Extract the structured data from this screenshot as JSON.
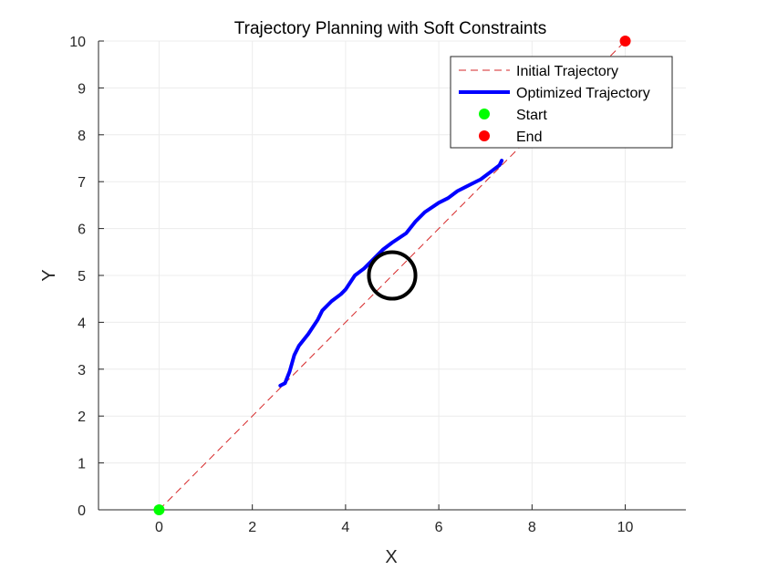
{
  "chart_data": {
    "type": "line",
    "title": "Trajectory Planning with Soft Constraints",
    "xlabel": "X",
    "ylabel": "Y",
    "xlim": [
      -1.3,
      11.3
    ],
    "ylim": [
      0,
      10
    ],
    "xticks": [
      0,
      2,
      4,
      6,
      8,
      10
    ],
    "yticks": [
      0,
      1,
      2,
      3,
      4,
      5,
      6,
      7,
      8,
      9,
      10
    ],
    "grid": true,
    "legend_position": "top-right",
    "legend": [
      "Initial Trajectory",
      "Optimized Trajectory",
      "Start",
      "End"
    ],
    "series": [
      {
        "name": "Initial Trajectory",
        "style": "dashed",
        "color": "#d62728",
        "x": [
          0,
          10
        ],
        "y": [
          0,
          10
        ]
      },
      {
        "name": "Optimized Trajectory",
        "style": "solid",
        "color": "#0000ff",
        "x": [
          2.6,
          2.7,
          2.8,
          2.9,
          3.0,
          3.2,
          3.4,
          3.5,
          3.7,
          3.9,
          4.0,
          4.2,
          4.4,
          4.6,
          4.8,
          5.0,
          5.3,
          5.5,
          5.7,
          6.0,
          6.2,
          6.4,
          6.7,
          6.9,
          7.1,
          7.3,
          7.35
        ],
        "y": [
          2.65,
          2.7,
          2.95,
          3.3,
          3.5,
          3.75,
          4.05,
          4.25,
          4.45,
          4.6,
          4.7,
          5.0,
          5.15,
          5.35,
          5.55,
          5.7,
          5.9,
          6.15,
          6.35,
          6.55,
          6.65,
          6.8,
          6.95,
          7.05,
          7.2,
          7.35,
          7.45
        ]
      },
      {
        "name": "Start",
        "style": "marker",
        "color": "#00ff00",
        "x": [
          0
        ],
        "y": [
          0
        ]
      },
      {
        "name": "End",
        "style": "marker",
        "color": "#ff0000",
        "x": [
          10
        ],
        "y": [
          10
        ]
      }
    ],
    "obstacle": {
      "type": "circle",
      "center": [
        5,
        5
      ],
      "radius": 0.5,
      "color": "#000000"
    }
  }
}
